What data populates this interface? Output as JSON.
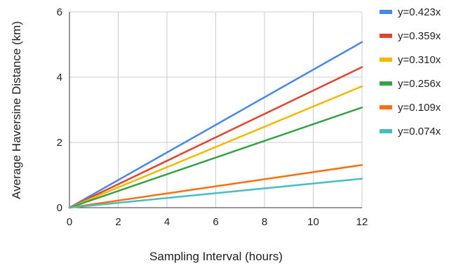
{
  "chart_data": {
    "type": "line",
    "title": "",
    "xlabel": "Sampling Interval (hours)",
    "ylabel": "Average Haversine Distance (km)",
    "xlim": [
      0,
      12
    ],
    "ylim": [
      0,
      6
    ],
    "xticks": [
      0,
      2,
      4,
      6,
      8,
      10,
      12
    ],
    "yticks": [
      0,
      2,
      4,
      6
    ],
    "grid": true,
    "legend_position": "right",
    "series": [
      {
        "name": "y=0.423x",
        "color": "#4a86e8",
        "x": [
          0,
          12
        ],
        "y": [
          0,
          5.076
        ]
      },
      {
        "name": "y=0.359x",
        "color": "#e0432f",
        "x": [
          0,
          12
        ],
        "y": [
          0,
          4.308
        ]
      },
      {
        "name": "y=0.310x",
        "color": "#f5b800",
        "x": [
          0,
          12
        ],
        "y": [
          0,
          3.72
        ]
      },
      {
        "name": "y=0.256x",
        "color": "#34a245",
        "x": [
          0,
          12
        ],
        "y": [
          0,
          3.072
        ]
      },
      {
        "name": "y=0.109x",
        "color": "#fa6f0c",
        "x": [
          0,
          12
        ],
        "y": [
          0,
          1.308
        ]
      },
      {
        "name": "y=0.074x",
        "color": "#46bdc6",
        "x": [
          0,
          12
        ],
        "y": [
          0,
          0.888
        ]
      }
    ]
  }
}
